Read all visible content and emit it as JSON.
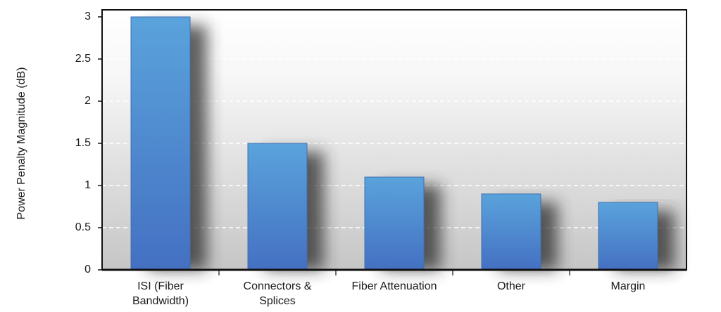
{
  "chart_data": {
    "type": "bar",
    "title": "",
    "xlabel": "",
    "ylabel": "Power Penalty Magnitude (dB)",
    "categories": [
      [
        "ISI (Fiber",
        "Bandwidth)"
      ],
      [
        "Connectors &",
        "Splices"
      ],
      [
        "Fiber Attenuation"
      ],
      [
        "Other"
      ],
      [
        "Margin"
      ]
    ],
    "values": [
      3.0,
      1.5,
      1.1,
      0.9,
      0.8
    ],
    "ylim": [
      0,
      3
    ],
    "yticks": [
      "0",
      "0.5",
      "1",
      "1.5",
      "2",
      "2.5",
      "3"
    ],
    "grid": true,
    "legend": "none",
    "colors": {
      "bar_top": "#5aa3dc",
      "bar_bottom": "#4472c4",
      "bar_stroke": "#3f6fae",
      "plot_bg_top": "#ffffff",
      "plot_bg_bottom": "#c9c9c9",
      "gridline": "#ffffff"
    }
  }
}
